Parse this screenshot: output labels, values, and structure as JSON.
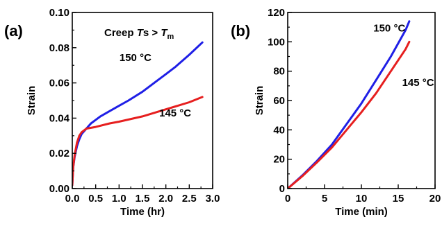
{
  "chart_data": [
    {
      "type": "line",
      "panel_label": "(a)",
      "annotation_parts": [
        "Creep ",
        "T",
        "s",
        " > ",
        "T",
        "m"
      ],
      "xlabel": "Time (hr)",
      "ylabel": "Strain",
      "xlim": [
        0,
        3.0
      ],
      "ylim": [
        0,
        0.1
      ],
      "xticks": [
        "0.0",
        "0.5",
        "1.0",
        "1.5",
        "2.0",
        "2.5",
        "3.0"
      ],
      "yticks": [
        "0.00",
        "0.02",
        "0.04",
        "0.06",
        "0.08",
        "0.10"
      ],
      "grid": false,
      "series": [
        {
          "name": "150 °C",
          "color": "#1f1fe6",
          "x": [
            0,
            0.02,
            0.05,
            0.1,
            0.15,
            0.2,
            0.3,
            0.4,
            0.5,
            0.6,
            0.8,
            1.0,
            1.2,
            1.5,
            1.8,
            2.0,
            2.2,
            2.5,
            2.78
          ],
          "y": [
            0.002,
            0.012,
            0.018,
            0.024,
            0.028,
            0.031,
            0.034,
            0.037,
            0.039,
            0.041,
            0.044,
            0.047,
            0.05,
            0.055,
            0.061,
            0.065,
            0.069,
            0.076,
            0.083
          ]
        },
        {
          "name": "145 °C",
          "color": "#e61f1f",
          "x": [
            0,
            0.02,
            0.05,
            0.1,
            0.15,
            0.2,
            0.25,
            0.3,
            0.5,
            0.8,
            1.0,
            1.5,
            2.0,
            2.5,
            2.78
          ],
          "y": [
            0.002,
            0.012,
            0.019,
            0.026,
            0.03,
            0.032,
            0.033,
            0.034,
            0.035,
            0.037,
            0.038,
            0.041,
            0.045,
            0.049,
            0.052
          ]
        }
      ],
      "series_labels": [
        {
          "text": "150 °C",
          "x": 1.35,
          "y": 0.0725
        },
        {
          "text": "145 °C",
          "x": 2.2,
          "y": 0.041
        }
      ]
    },
    {
      "type": "line",
      "panel_label": "(b)",
      "xlabel": "Time (min)",
      "ylabel": "Strain",
      "xlim": [
        0,
        20
      ],
      "ylim": [
        0,
        120
      ],
      "xticks": [
        "0",
        "5",
        "10",
        "15",
        "20"
      ],
      "yticks": [
        "0",
        "20",
        "40",
        "60",
        "80",
        "100",
        "120"
      ],
      "grid": false,
      "series": [
        {
          "name": "150 °C",
          "color": "#1f1fe6",
          "x": [
            0,
            2,
            4,
            6,
            8,
            10,
            12,
            14,
            16,
            16.5
          ],
          "y": [
            0,
            9,
            19,
            30,
            44,
            58,
            74,
            90,
            108,
            114
          ]
        },
        {
          "name": "145 °C",
          "color": "#e61f1f",
          "x": [
            0,
            2,
            4,
            6,
            8,
            10,
            12,
            14,
            16,
            16.5
          ],
          "y": [
            0,
            8.5,
            18,
            28,
            40,
            52,
            65,
            80,
            95,
            100
          ]
        }
      ],
      "series_labels": [
        {
          "text": "150 °C",
          "x": 13.8,
          "y": 107
        },
        {
          "text": "145 °C",
          "x": 17.7,
          "y": 70
        }
      ]
    }
  ]
}
